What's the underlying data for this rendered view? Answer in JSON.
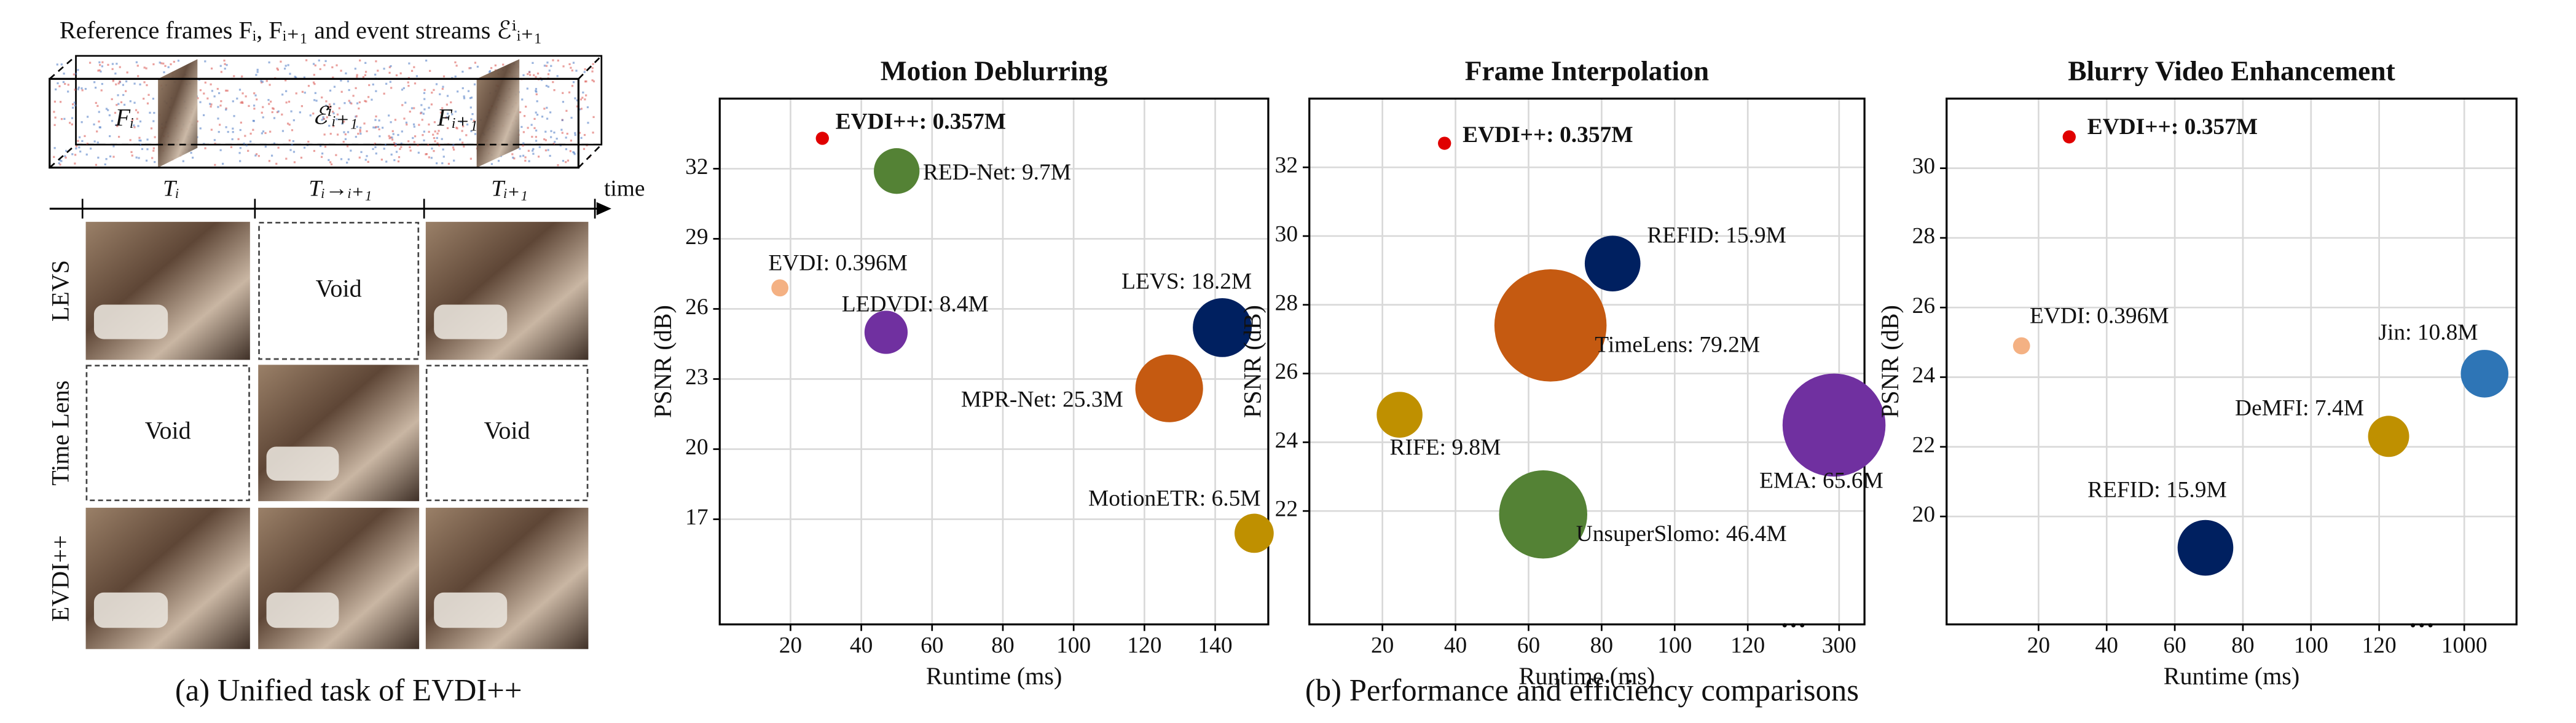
{
  "panel_a": {
    "header": "Reference frames Fᵢ, Fᵢ₊₁ and event streams ℰⁱᵢ₊₁",
    "cube_labels": [
      "Fᵢ",
      "ℰⁱᵢ₊₁",
      "Fᵢ₊₁"
    ],
    "intervals": [
      "Tᵢ",
      "Tᵢ→ᵢ₊₁",
      "Tᵢ₊₁"
    ],
    "time_label": "time",
    "rows": [
      {
        "name": "LEVS",
        "cells": [
          null,
          "Void",
          null
        ]
      },
      {
        "name": "Time Lens",
        "cells": [
          "Void",
          null,
          "Void"
        ]
      },
      {
        "name": "EVDI++",
        "cells": [
          null,
          null,
          null
        ]
      }
    ],
    "caption": "(a)  Unified task of EVDI++"
  },
  "caption_b": "(b)  Performance and efficiency comparisons",
  "chart_data": [
    {
      "type": "scatter",
      "title": "Motion Deblurring",
      "xlabel": "Runtime (ms)",
      "ylabel": "PSNR (dB)",
      "xlim": [
        0,
        155
      ],
      "ylim": [
        12.5,
        35
      ],
      "xticks": [
        20,
        40,
        60,
        80,
        100,
        120,
        140
      ],
      "yticks": [
        17,
        20,
        23,
        26,
        29,
        32
      ],
      "grid": true,
      "points": [
        {
          "label": "EVDI++: 0.357M",
          "x": 29,
          "y": 33.3,
          "size": 0.357,
          "color": "#e00000",
          "highlight": true
        },
        {
          "label": "RED-Net: 9.7M",
          "x": 50,
          "y": 31.9,
          "size": 9.7,
          "color": "#548235"
        },
        {
          "label": "EVDI: 0.396M",
          "x": 17,
          "y": 26.9,
          "size": 0.396,
          "color": "#f4b183"
        },
        {
          "label": "LEDVDI: 8.4M",
          "x": 47,
          "y": 25,
          "size": 8.4,
          "color": "#7030a0"
        },
        {
          "label": "LEVS: 18.2M",
          "x": 142,
          "y": 25.2,
          "size": 18.2,
          "color": "#002060"
        },
        {
          "label": "MPR-Net: 25.3M",
          "x": 127,
          "y": 22.6,
          "size": 25.3,
          "color": "#c55a11"
        },
        {
          "label": "MotionETR: 6.5M",
          "x": 151,
          "y": 16.4,
          "size": 6.5,
          "color": "#bf9000"
        }
      ]
    },
    {
      "type": "scatter",
      "title": "Frame Interpolation",
      "xlabel": "Runtime (ms)",
      "ylabel": "PSNR (dB)",
      "xlim": [
        0,
        350
      ],
      "ylim": [
        18.7,
        34
      ],
      "xticks": [
        20,
        40,
        60,
        80,
        100,
        120,
        300
      ],
      "x_break_label": "···",
      "yticks": [
        22,
        24,
        26,
        28,
        30,
        32
      ],
      "grid": true,
      "points": [
        {
          "label": "EVDI++: 0.357M",
          "x": 37,
          "y": 32.7,
          "size": 0.357,
          "color": "#e00000",
          "highlight": true
        },
        {
          "label": "REFID: 15.9M",
          "x": 83,
          "y": 29.2,
          "size": 15.9,
          "color": "#002060"
        },
        {
          "label": "TimeLens: 79.2M",
          "x": 66,
          "y": 27.4,
          "size": 79.2,
          "color": "#c55a11"
        },
        {
          "label": "RIFE: 9.8M",
          "x": 24.7,
          "y": 24.8,
          "size": 9.8,
          "color": "#bf9000"
        },
        {
          "label": "EMA: 65.6M",
          "x": 290,
          "y": 24.5,
          "size": 65.6,
          "color": "#7030a0"
        },
        {
          "label": "UnsuperSlomo: 46.4M",
          "x": 64,
          "y": 21.9,
          "size": 46.4,
          "color": "#548235"
        }
      ]
    },
    {
      "type": "scatter",
      "title": "Blurry Video Enhancement",
      "xlabel": "Runtime (ms)",
      "ylabel": "PSNR (dB)",
      "xlim": [
        -7,
        1540
      ],
      "ylim": [
        16.9,
        32
      ],
      "xticks": [
        20,
        40,
        60,
        80,
        100,
        120,
        1000
      ],
      "x_break_label": "···",
      "yticks": [
        20,
        22,
        24,
        26,
        28,
        30
      ],
      "grid": true,
      "points": [
        {
          "label": "EVDI++: 0.357M",
          "x": 29,
          "y": 30.9,
          "size": 0.357,
          "color": "#e00000",
          "highlight": true
        },
        {
          "label": "EVDI: 0.396M",
          "x": 15,
          "y": 24.9,
          "size": 0.396,
          "color": "#f4b183"
        },
        {
          "label": "Jin: 10.8M",
          "x": 1210,
          "y": 24.1,
          "size": 10.8,
          "color": "#2e75b6"
        },
        {
          "label": "DeMFI: 7.4M",
          "x": 218,
          "y": 22.3,
          "size": 7.4,
          "color": "#bf9000"
        },
        {
          "label": "REFID: 15.9M",
          "x": 69,
          "y": 19.1,
          "size": 15.9,
          "color": "#002060"
        }
      ]
    }
  ]
}
